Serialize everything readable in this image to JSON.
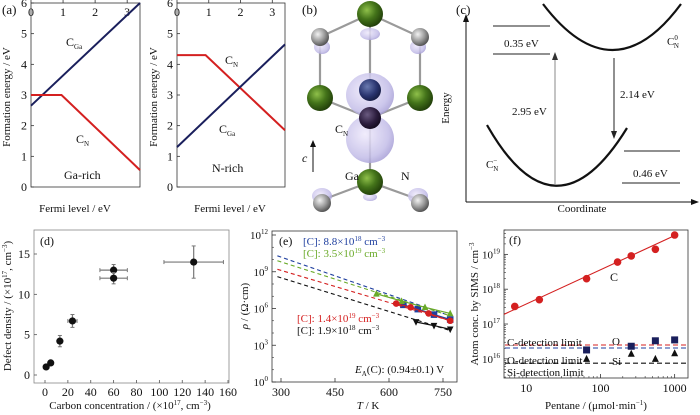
{
  "colors": {
    "red": "#d42020",
    "navy": "#1a1f5c",
    "blue": "#1f3f9f",
    "green": "#6aaa28",
    "black": "#111111",
    "gray": "#777777",
    "ga": "#3f6e12",
    "n": "#8e8e8e",
    "orbital": "#b6b0e0"
  },
  "panel_a": {
    "label": "(a)",
    "chart_data": {
      "type": "line",
      "title": "",
      "xlabel": "Fermi level / eV",
      "ylabel": "Formation energy / eV",
      "xlim": [
        0,
        3.4
      ],
      "ylim": [
        0,
        6
      ],
      "xticks": [
        "0",
        "1",
        "2",
        "3"
      ],
      "yticks": [
        "0",
        "1",
        "2",
        "3",
        "4",
        "5",
        "6"
      ],
      "annotation": "Ga-rich",
      "series": [
        {
          "name": "C_Ga",
          "label_main": "C",
          "label_sub": "Ga",
          "color": "navy",
          "x": [
            0,
            3.4
          ],
          "y": [
            2.65,
            6.0
          ]
        },
        {
          "name": "C_N",
          "label_main": "C",
          "label_sub": "N",
          "color": "red",
          "x": [
            0,
            0.95,
            3.4
          ],
          "y": [
            3.0,
            3.0,
            0.55
          ]
        }
      ]
    }
  },
  "panel_a2": {
    "chart_data": {
      "type": "line",
      "title": "",
      "xlabel": "Fermi level / eV",
      "ylabel": "Formation energy / eV",
      "xlim": [
        0,
        3.4
      ],
      "ylim": [
        0,
        6
      ],
      "xticks": [
        "0",
        "1",
        "2",
        "3"
      ],
      "yticks": [
        "0",
        "1",
        "2",
        "3",
        "4",
        "5",
        "6"
      ],
      "annotation": "N-rich",
      "series": [
        {
          "name": "C_N",
          "label_main": "C",
          "label_sub": "N",
          "color": "red",
          "x": [
            0,
            0.9,
            3.4
          ],
          "y": [
            4.3,
            4.3,
            1.85
          ]
        },
        {
          "name": "C_Ga",
          "label_main": "C",
          "label_sub": "Ga",
          "color": "navy",
          "x": [
            0,
            3.4
          ],
          "y": [
            1.3,
            4.65
          ]
        }
      ]
    }
  },
  "panel_b": {
    "label": "(b)",
    "cn_main": "C",
    "cn_sub": "N",
    "axis": "c",
    "ga": "Ga",
    "n": "N"
  },
  "panel_c": {
    "label": "(c)",
    "ylabel": "Energy",
    "xlabel": "Coordinate",
    "upper_main": "C",
    "upper_sub": "N",
    "upper_sup": "0",
    "lower_main": "C",
    "lower_sub": "N",
    "lower_sup": "−",
    "e1": "0.35 eV",
    "e2": "2.95 eV",
    "e3": "2.14 eV",
    "e4": "0.46 eV"
  },
  "panel_d": {
    "label": "(d)",
    "chart_data": {
      "type": "scatter",
      "title": "",
      "xlabel_pre": "Carbon concentration / (×10",
      "xlabel_sup": "17",
      "xlabel_mid": ", cm",
      "xlabel_sup2": "−3",
      "xlabel_post": ")",
      "ylabel_pre": "Defect density / (×10",
      "ylabel_sup": "17",
      "ylabel_mid": ", cm",
      "ylabel_sup2": "−3",
      "ylabel_post": ")",
      "xlim": [
        -10,
        160
      ],
      "ylim": [
        -1,
        18
      ],
      "xticks": [
        "0",
        "20",
        "40",
        "60",
        "80",
        "100",
        "120",
        "140",
        "160"
      ],
      "yticks": [
        "0",
        "5",
        "10",
        "15"
      ],
      "points": [
        {
          "x": 1,
          "y": 1.0,
          "xerr": 0,
          "yerr": 0
        },
        {
          "x": 5,
          "y": 1.5,
          "xerr": 0,
          "yerr": 0
        },
        {
          "x": 13,
          "y": 4.2,
          "xerr": 0,
          "yerr": 0.7
        },
        {
          "x": 24,
          "y": 6.7,
          "xerr": 4,
          "yerr": 0.8
        },
        {
          "x": 60,
          "y": 13.0,
          "xerr": 12,
          "yerr": 0.7
        },
        {
          "x": 60,
          "y": 12.0,
          "xerr": 12,
          "yerr": 0.7
        },
        {
          "x": 130,
          "y": 14.0,
          "xerr": 26,
          "yerr": 2.0
        }
      ]
    }
  },
  "panel_e": {
    "label": "(e)",
    "chart_data": {
      "type": "line",
      "title": "",
      "xlabel_i": "T",
      "xlabel_post": " / K",
      "ylabel_i": "ρ",
      "ylabel_post": " / (Ω·cm)",
      "xlim": [
        280,
        780
      ],
      "ylim_log10": [
        0,
        12
      ],
      "xticks": [
        "300",
        "450",
        "600",
        "750"
      ],
      "yticks": [
        {
          "base": "10",
          "exp": "0"
        },
        {
          "base": "10",
          "exp": "3"
        },
        {
          "base": "10",
          "exp": "6"
        },
        {
          "base": "10",
          "exp": "9"
        },
        {
          "base": "10",
          "exp": "12"
        }
      ],
      "annotation_pre": "E",
      "annotation_sub": "A",
      "annotation_post": "(C): (0.94±0.1) V",
      "series": [
        {
          "name": "[C]: 8.8×10^18 cm^-3",
          "pre": "[C]: 8.8×10",
          "exp": "18",
          "unit": " cm",
          "unit_exp": "−3",
          "color": "blue",
          "marker": "square",
          "fit_log10": [
            [
              290,
              10.3
            ],
            [
              770,
              5.4
            ]
          ],
          "x": [
            640,
            680,
            725,
            770
          ],
          "log10": [
            6.3,
            5.95,
            5.5,
            5.1
          ]
        },
        {
          "name": "[C]: 3.5×10^19 cm^-3",
          "pre": "[C]: 3.5×10",
          "exp": "19",
          "unit": " cm",
          "unit_exp": "−3",
          "color": "green",
          "marker": "triangle-up",
          "fit_log10": [
            [
              290,
              9.9
            ],
            [
              770,
              5.4
            ]
          ],
          "x": [
            565,
            635,
            700,
            770
          ],
          "log10": [
            7.2,
            6.6,
            6.1,
            5.6
          ]
        },
        {
          "name": "[C]: 1.4×10^19 cm^-3",
          "pre": "[C]: 1.4×10",
          "exp": "19",
          "unit": " cm",
          "unit_exp": "−3",
          "color": "red",
          "marker": "circle",
          "fit_log10": [
            [
              290,
              9.2
            ],
            [
              770,
              5.0
            ]
          ],
          "x": [
            620,
            660,
            710,
            770
          ],
          "log10": [
            6.4,
            6.1,
            5.6,
            5.0
          ]
        },
        {
          "name": "[C]: 1.9×10^18 cm^-3",
          "pre": "[C]: 1.9×10",
          "exp": "18",
          "unit": " cm",
          "unit_exp": "−3",
          "color": "black",
          "marker": "triangle-down",
          "fit_log10": [
            [
              290,
              8.6
            ],
            [
              770,
              4.2
            ]
          ],
          "x": [
            675,
            725,
            770
          ],
          "log10": [
            4.9,
            4.6,
            4.3
          ]
        }
      ]
    }
  },
  "panel_f": {
    "label": "(f)",
    "chart_data": {
      "type": "scatter",
      "title": "",
      "xlabel_pre": "Pentane / (μmol·min",
      "xlabel_sup": "−1",
      "xlabel_post": ")",
      "ylabel_pre": "Atom conc. by SIMS / cm",
      "ylabel_sup": "−3",
      "xlim_log10": [
        0.7,
        3.18
      ],
      "ylim_log10": [
        15.45,
        19.7
      ],
      "xticks": [
        "10",
        "100",
        "1000"
      ],
      "yticks": [
        {
          "base": "10",
          "exp": "16"
        },
        {
          "base": "10",
          "exp": "17"
        },
        {
          "base": "10",
          "exp": "18"
        },
        {
          "base": "10",
          "exp": "19"
        }
      ],
      "series": [
        {
          "name": "C",
          "label": "C",
          "color": "red",
          "marker": "circle",
          "x": [
            7,
            15,
            65,
            170,
            260,
            550,
            1000
          ],
          "y": [
            3.2e+17,
            5e+17,
            2e+18,
            6e+18,
            9e+18,
            1.4e+19,
            3.6e+19
          ],
          "fit": [
            [
              5,
              1.9e+17
            ],
            [
              1100,
              3.8e+19
            ]
          ]
        },
        {
          "name": "O",
          "label": "O",
          "color": "navy",
          "marker": "square",
          "x": [
            65,
            260,
            550,
            1000
          ],
          "y": [
            1.8e+16,
            2.3e+16,
            3.3e+16,
            3.5e+16
          ]
        },
        {
          "name": "Si",
          "label": "Si",
          "color": "black",
          "marker": "triangle-up",
          "x": [
            65,
            260,
            550,
            1000
          ],
          "y": [
            1e+16,
            1.4e+16,
            1e+16,
            1.45e+16
          ]
        }
      ],
      "limits": [
        {
          "name": "C-detection limit",
          "label": "C-detection limit",
          "color": "red",
          "y": 2.5e+16
        },
        {
          "name": "O-detection limit",
          "label": "O-detection limit",
          "color": "blue",
          "y": 2.05e+16
        },
        {
          "name": "Si-detection limit",
          "label": "Si-detection limit",
          "color": "black",
          "y": 7500000000000000.0
        }
      ]
    }
  }
}
